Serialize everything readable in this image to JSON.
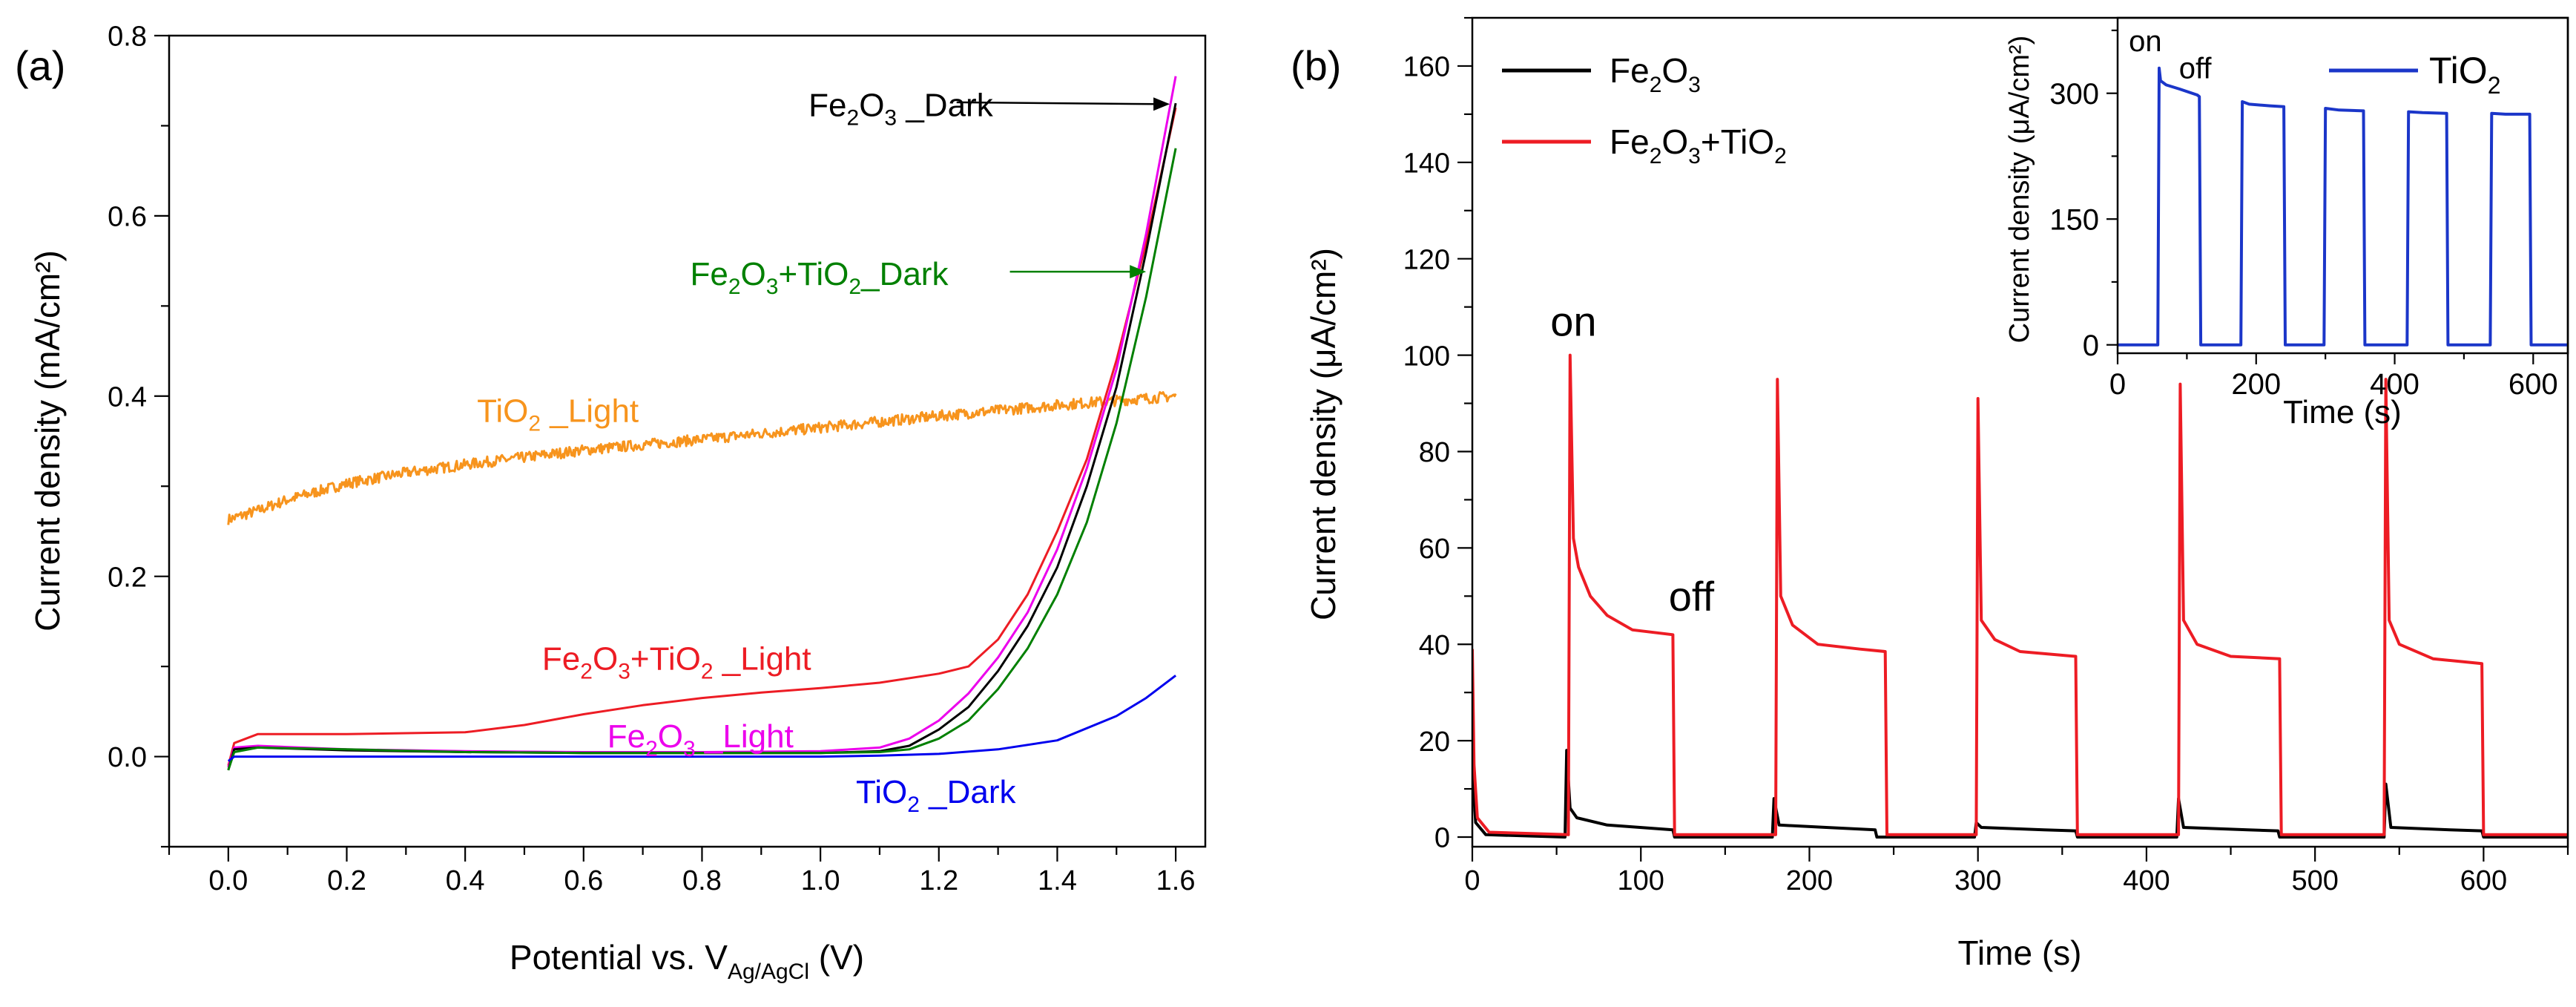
{
  "chart_data": [
    {
      "panel_label": "(a)",
      "type": "line",
      "xlabel": "Potential vs. V",
      "xlabel_sub": "Ag/AgCl",
      "xlabel_unit": " (V)",
      "ylabel": "Current density (mA/cm²)",
      "xlim": [
        -0.1,
        1.65
      ],
      "ylim": [
        -0.1,
        0.8
      ],
      "xticks": [
        0.0,
        0.2,
        0.4,
        0.6,
        0.8,
        1.0,
        1.2,
        1.4,
        1.6
      ],
      "yticks": [
        0.0,
        0.2,
        0.4,
        0.6,
        0.8
      ],
      "tick_decimals_x": 1,
      "tick_decimals_y": 1,
      "series": [
        {
          "name": "TiO2_Light",
          "color": "#f7941d",
          "noise": 0.006,
          "points": [
            [
              0.0,
              0.263
            ],
            [
              0.05,
              0.273
            ],
            [
              0.1,
              0.285
            ],
            [
              0.2,
              0.303
            ],
            [
              0.3,
              0.315
            ],
            [
              0.4,
              0.324
            ],
            [
              0.6,
              0.34
            ],
            [
              0.8,
              0.352
            ],
            [
              1.0,
              0.365
            ],
            [
              1.2,
              0.378
            ],
            [
              1.4,
              0.39
            ],
            [
              1.6,
              0.4
            ]
          ]
        },
        {
          "name": "Fe2O3+TiO2_Light",
          "color": "#ed1c24",
          "points": [
            [
              0.0,
              -0.01
            ],
            [
              0.01,
              0.015
            ],
            [
              0.05,
              0.025
            ],
            [
              0.2,
              0.025
            ],
            [
              0.4,
              0.027
            ],
            [
              0.5,
              0.035
            ],
            [
              0.6,
              0.047
            ],
            [
              0.7,
              0.057
            ],
            [
              0.8,
              0.065
            ],
            [
              0.9,
              0.071
            ],
            [
              1.0,
              0.076
            ],
            [
              1.1,
              0.082
            ],
            [
              1.2,
              0.092
            ],
            [
              1.25,
              0.1
            ],
            [
              1.3,
              0.13
            ],
            [
              1.35,
              0.18
            ],
            [
              1.4,
              0.25
            ],
            [
              1.45,
              0.33
            ],
            [
              1.5,
              0.44
            ],
            [
              1.55,
              0.57
            ],
            [
              1.6,
              0.72
            ]
          ]
        },
        {
          "name": "Fe2O3_Light",
          "color": "#ec00ec",
          "points": [
            [
              0.0,
              -0.012
            ],
            [
              0.01,
              0.01
            ],
            [
              0.05,
              0.012
            ],
            [
              0.2,
              0.008
            ],
            [
              0.4,
              0.006
            ],
            [
              0.6,
              0.005
            ],
            [
              0.8,
              0.005
            ],
            [
              1.0,
              0.006
            ],
            [
              1.1,
              0.01
            ],
            [
              1.15,
              0.02
            ],
            [
              1.2,
              0.04
            ],
            [
              1.25,
              0.07
            ],
            [
              1.3,
              0.11
            ],
            [
              1.35,
              0.16
            ],
            [
              1.4,
              0.23
            ],
            [
              1.45,
              0.32
            ],
            [
              1.5,
              0.43
            ],
            [
              1.55,
              0.58
            ],
            [
              1.6,
              0.755
            ]
          ]
        },
        {
          "name": "Fe2O3_Dark",
          "color": "#000000",
          "points": [
            [
              0.0,
              -0.015
            ],
            [
              0.01,
              0.008
            ],
            [
              0.05,
              0.01
            ],
            [
              0.2,
              0.007
            ],
            [
              0.4,
              0.005
            ],
            [
              0.6,
              0.004
            ],
            [
              0.8,
              0.004
            ],
            [
              1.0,
              0.004
            ],
            [
              1.1,
              0.006
            ],
            [
              1.15,
              0.012
            ],
            [
              1.2,
              0.03
            ],
            [
              1.25,
              0.055
            ],
            [
              1.3,
              0.095
            ],
            [
              1.35,
              0.145
            ],
            [
              1.4,
              0.21
            ],
            [
              1.45,
              0.3
            ],
            [
              1.5,
              0.41
            ],
            [
              1.55,
              0.56
            ],
            [
              1.6,
              0.725
            ]
          ]
        },
        {
          "name": "Fe2O3+TiO2_Dark",
          "color": "#008000",
          "points": [
            [
              0.0,
              -0.015
            ],
            [
              0.01,
              0.005
            ],
            [
              0.05,
              0.01
            ],
            [
              0.2,
              0.008
            ],
            [
              0.4,
              0.005
            ],
            [
              0.6,
              0.004
            ],
            [
              0.8,
              0.004
            ],
            [
              1.0,
              0.004
            ],
            [
              1.1,
              0.005
            ],
            [
              1.15,
              0.008
            ],
            [
              1.2,
              0.02
            ],
            [
              1.25,
              0.04
            ],
            [
              1.3,
              0.075
            ],
            [
              1.35,
              0.12
            ],
            [
              1.4,
              0.18
            ],
            [
              1.45,
              0.26
            ],
            [
              1.5,
              0.37
            ],
            [
              1.55,
              0.51
            ],
            [
              1.6,
              0.675
            ]
          ]
        },
        {
          "name": "TiO2_Dark",
          "color": "#0000ee",
          "points": [
            [
              0.0,
              -0.005
            ],
            [
              0.01,
              0.0
            ],
            [
              0.3,
              0.0
            ],
            [
              0.6,
              0.0
            ],
            [
              1.0,
              0.0
            ],
            [
              1.1,
              0.001
            ],
            [
              1.2,
              0.003
            ],
            [
              1.3,
              0.008
            ],
            [
              1.4,
              0.018
            ],
            [
              1.5,
              0.045
            ],
            [
              1.55,
              0.065
            ],
            [
              1.6,
              0.09
            ]
          ]
        }
      ],
      "annotations": [
        {
          "name": "ann-fe2o3-dark",
          "color": "#000000",
          "parts": [
            "Fe",
            "2",
            "O",
            "3",
            " _Dark"
          ],
          "x": 0.98,
          "y": 0.722,
          "arrow": [
            [
              1.23,
              0.726
            ],
            [
              1.59,
              0.724
            ]
          ]
        },
        {
          "name": "ann-fe2o3-tio2-dark",
          "color": "#008000",
          "parts": [
            "Fe",
            "2",
            "O",
            "3",
            "+TiO",
            "2",
            "_Dark"
          ],
          "x": 0.78,
          "y": 0.535,
          "arrow": [
            [
              1.32,
              0.538
            ],
            [
              1.55,
              0.538
            ]
          ]
        },
        {
          "name": "ann-tio2-light",
          "color": "#f7941d",
          "parts": [
            "TiO",
            "2",
            " _Light"
          ],
          "x": 0.42,
          "y": 0.383
        },
        {
          "name": "ann-fe2o3-tio2-light",
          "color": "#ed1c24",
          "parts": [
            "Fe",
            "2",
            "O",
            "3",
            "+TiO",
            "2",
            " _Light"
          ],
          "x": 0.53,
          "y": 0.108
        },
        {
          "name": "ann-fe2o3-light",
          "color": "#ec00ec",
          "parts": [
            "Fe",
            "2",
            "O",
            "3",
            " _Light"
          ],
          "x": 0.64,
          "y": 0.022
        },
        {
          "name": "ann-tio2-dark",
          "color": "#0000ee",
          "parts": [
            "TiO",
            "2",
            " _Dark"
          ],
          "x": 1.06,
          "y": -0.04
        }
      ]
    },
    {
      "panel_label": "(b)",
      "type": "line",
      "xlabel": "Time (s)",
      "ylabel": "Current density (μA/cm²)",
      "xlim": [
        0,
        650
      ],
      "ylim": [
        -2,
        170
      ],
      "xticks": [
        0,
        100,
        200,
        300,
        400,
        500,
        600
      ],
      "yticks": [
        0,
        20,
        40,
        60,
        80,
        100,
        120,
        140,
        160
      ],
      "series": [
        {
          "name": "Fe2O3",
          "color": "#000000",
          "points": [
            [
              0,
              14
            ],
            [
              2,
              3
            ],
            [
              8,
              0.5
            ],
            [
              55,
              0
            ],
            [
              56,
              18
            ],
            [
              58,
              6
            ],
            [
              62,
              4
            ],
            [
              80,
              2.5
            ],
            [
              119,
              1.5
            ],
            [
              120,
              0
            ],
            [
              178,
              0
            ],
            [
              179,
              8
            ],
            [
              182,
              2.5
            ],
            [
              210,
              2
            ],
            [
              239,
              1.5
            ],
            [
              240,
              0
            ],
            [
              298,
              0
            ],
            [
              299,
              3
            ],
            [
              302,
              2
            ],
            [
              339,
              1.5
            ],
            [
              358,
              1.3
            ],
            [
              359,
              0
            ],
            [
              418,
              0
            ],
            [
              419,
              8
            ],
            [
              422,
              2
            ],
            [
              460,
              1.5
            ],
            [
              478,
              1.3
            ],
            [
              479,
              0
            ],
            [
              541,
              0
            ],
            [
              542,
              11
            ],
            [
              545,
              2
            ],
            [
              580,
              1.5
            ],
            [
              599,
              1.3
            ],
            [
              600,
              0
            ],
            [
              650,
              0
            ]
          ]
        },
        {
          "name": "Fe2O3+TiO2",
          "color": "#ed1c24",
          "points": [
            [
              0,
              39
            ],
            [
              1,
              15
            ],
            [
              3,
              4
            ],
            [
              10,
              1
            ],
            [
              57,
              0.5
            ],
            [
              58,
              100
            ],
            [
              60,
              62
            ],
            [
              63,
              56
            ],
            [
              70,
              50
            ],
            [
              80,
              46
            ],
            [
              95,
              43
            ],
            [
              119,
              42
            ],
            [
              120,
              0.5
            ],
            [
              180,
              0.5
            ],
            [
              181,
              95
            ],
            [
              183,
              50
            ],
            [
              190,
              44
            ],
            [
              205,
              40
            ],
            [
              230,
              39
            ],
            [
              245,
              38.5
            ],
            [
              246,
              0.5
            ],
            [
              299,
              0.5
            ],
            [
              300,
              91
            ],
            [
              302,
              45
            ],
            [
              310,
              41
            ],
            [
              325,
              38.5
            ],
            [
              358,
              37.5
            ],
            [
              359,
              0.5
            ],
            [
              419,
              0.5
            ],
            [
              420,
              94
            ],
            [
              422,
              45
            ],
            [
              430,
              40
            ],
            [
              450,
              37.5
            ],
            [
              479,
              37
            ],
            [
              480,
              0.5
            ],
            [
              541,
              0.5
            ],
            [
              542,
              95
            ],
            [
              544,
              45
            ],
            [
              550,
              40
            ],
            [
              570,
              37
            ],
            [
              599,
              36
            ],
            [
              600,
              0.5
            ],
            [
              650,
              0.5
            ]
          ]
        }
      ],
      "legend": [
        {
          "name": "legend-fe2o3",
          "color": "#000000",
          "parts": [
            "Fe",
            "2",
            "O",
            "3"
          ]
        },
        {
          "name": "legend-fe2o3-tio2",
          "color": "#ed1c24",
          "parts": [
            "Fe",
            "2",
            "O",
            "3",
            "+TiO",
            "2"
          ]
        }
      ],
      "annotations": [
        {
          "name": "ann-on",
          "text": "on",
          "x": 60,
          "y": 104
        },
        {
          "name": "ann-off",
          "text": "off",
          "x": 130,
          "y": 47
        }
      ]
    },
    {
      "panel_label": "inset",
      "type": "line",
      "xlabel": "Time (s)",
      "ylabel": "Current density (μA/cm²)",
      "xlim": [
        0,
        650
      ],
      "ylim": [
        -10,
        390
      ],
      "xticks": [
        0,
        200,
        400,
        600
      ],
      "yticks": [
        0,
        150,
        300
      ],
      "series": [
        {
          "name": "TiO2",
          "color": "#1b36c9",
          "points": [
            [
              0,
              0
            ],
            [
              58,
              0
            ],
            [
              60,
              330
            ],
            [
              62,
              315
            ],
            [
              70,
              310
            ],
            [
              90,
              305
            ],
            [
              115,
              298
            ],
            [
              118,
              296
            ],
            [
              120,
              0
            ],
            [
              178,
              0
            ],
            [
              180,
              290
            ],
            [
              190,
              287
            ],
            [
              220,
              285
            ],
            [
              240,
              284
            ],
            [
              242,
              0
            ],
            [
              298,
              0
            ],
            [
              300,
              282
            ],
            [
              320,
              280
            ],
            [
              355,
              279
            ],
            [
              357,
              0
            ],
            [
              418,
              0
            ],
            [
              420,
              278
            ],
            [
              440,
              277
            ],
            [
              475,
              276
            ],
            [
              477,
              0
            ],
            [
              538,
              0
            ],
            [
              540,
              276
            ],
            [
              560,
              275
            ],
            [
              595,
              275
            ],
            [
              597,
              0
            ],
            [
              650,
              0
            ]
          ]
        }
      ],
      "legend": [
        {
          "name": "legend-tio2",
          "color": "#1b36c9",
          "parts": [
            "TiO",
            "2"
          ]
        }
      ],
      "annotations": [
        {
          "name": "inset-ann-on",
          "text": "on",
          "x": 40,
          "y": 350
        },
        {
          "name": "inset-ann-off",
          "text": "off",
          "x": 112,
          "y": 318
        }
      ]
    }
  ]
}
